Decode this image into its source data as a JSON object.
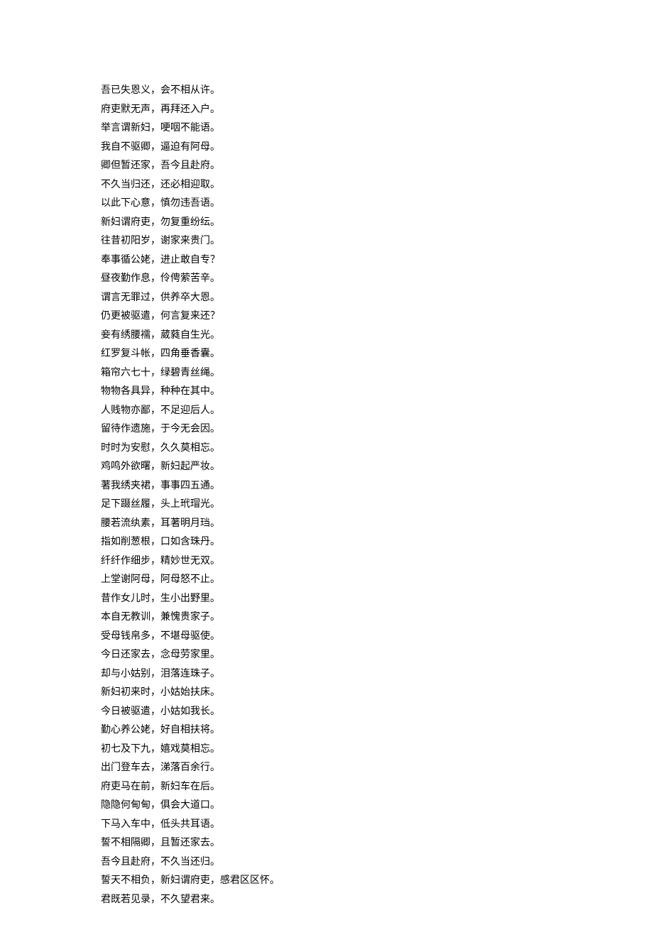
{
  "text_color": "#000000",
  "background_color": "#ffffff",
  "font_size": 14,
  "line_height": 26.5,
  "font_family": "SimSun",
  "lines": [
    "吾已失恩义，会不相从许。",
    "府吏默无声，再拜还入户。",
    "举言谓新妇，哽咽不能语。",
    "我自不驱卿，逼迫有阿母。",
    "卿但暂还家，吾今且赴府。",
    "不久当归还，还必相迎取。",
    "以此下心意，慎勿违吾语。",
    "新妇谓府吏，勿复重纷纭。",
    "往昔初阳岁，谢家来贵门。",
    "奉事循公姥，进止敢自专？",
    "昼夜勤作息，伶俜萦苦辛。",
    "谓言无罪过，供养卒大恩。",
    "仍更被驱遣，何言复来还？",
    "妾有绣腰襦，葳蕤自生光。",
    "红罗复斗帐，四角垂香囊。",
    "箱帘六七十，绿碧青丝绳。",
    "物物各具异，种种在其中。",
    "人贱物亦鄙，不足迎后人。",
    "留待作遗施，于今无会因。",
    "时时为安慰，久久莫相忘。",
    "鸡鸣外欲曙，新妇起严妆。",
    "著我绣夹裙，事事四五通。",
    "足下蹑丝履，头上玳瑁光。",
    "腰若流纨素，耳著明月珰。",
    "指如削葱根，口如含珠丹。",
    "纤纤作细步，精妙世无双。",
    "上堂谢阿母，阿母怒不止。",
    "昔作女儿时，生小出野里。",
    "本自无教训，兼愧贵家子。",
    "受母钱帛多，不堪母驱使。",
    "今日还家去，念母劳家里。",
    "却与小姑别，泪落连珠子。",
    "新妇初来时，小姑始扶床。",
    "今日被驱遣，小姑如我长。",
    "勤心养公姥，好自相扶将。",
    "初七及下九，嬉戏莫相忘。",
    "出门登车去，涕落百余行。",
    "府吏马在前，新妇车在后。",
    "隐隐何甸甸，俱会大道口。",
    "下马入车中，低头共耳语。",
    "誓不相隔卿，且暂还家去。",
    "吾今且赴府，不久当还归。",
    "誓天不相负，新妇谓府吏，感君区区怀。",
    "君既若见录，不久望君来。"
  ]
}
